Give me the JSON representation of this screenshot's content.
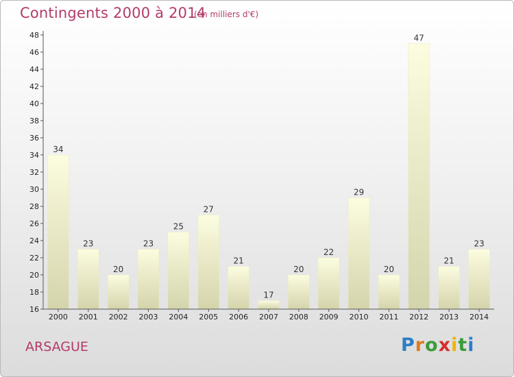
{
  "header": {
    "title": "Contingents 2000 à 2014",
    "subtitle": "(en milliers d'€)"
  },
  "footer": {
    "commune": "ARSAGUE",
    "logo_letters": [
      "P",
      "r",
      "o",
      "x",
      "i",
      "t",
      "i"
    ]
  },
  "colors": {
    "title": "#b23a6a",
    "bar_top": "#fcfce0",
    "bar_bottom": "#d4d4ac",
    "axis": "#555555"
  },
  "chart_data": {
    "type": "bar",
    "title": "Contingents 2000 à 2014",
    "subtitle": "(en milliers d'€)",
    "categories": [
      "2000",
      "2001",
      "2002",
      "2003",
      "2004",
      "2005",
      "2006",
      "2007",
      "2008",
      "2009",
      "2010",
      "2011",
      "2012",
      "2013",
      "2014"
    ],
    "values": [
      34,
      23,
      20,
      23,
      25,
      27,
      21,
      17,
      20,
      22,
      29,
      20,
      47,
      21,
      23
    ],
    "ylim": [
      16,
      48
    ],
    "yticks": [
      16,
      18,
      20,
      22,
      24,
      26,
      28,
      30,
      32,
      34,
      36,
      38,
      40,
      42,
      44,
      46,
      48
    ],
    "grid": false,
    "data_labels": true
  }
}
